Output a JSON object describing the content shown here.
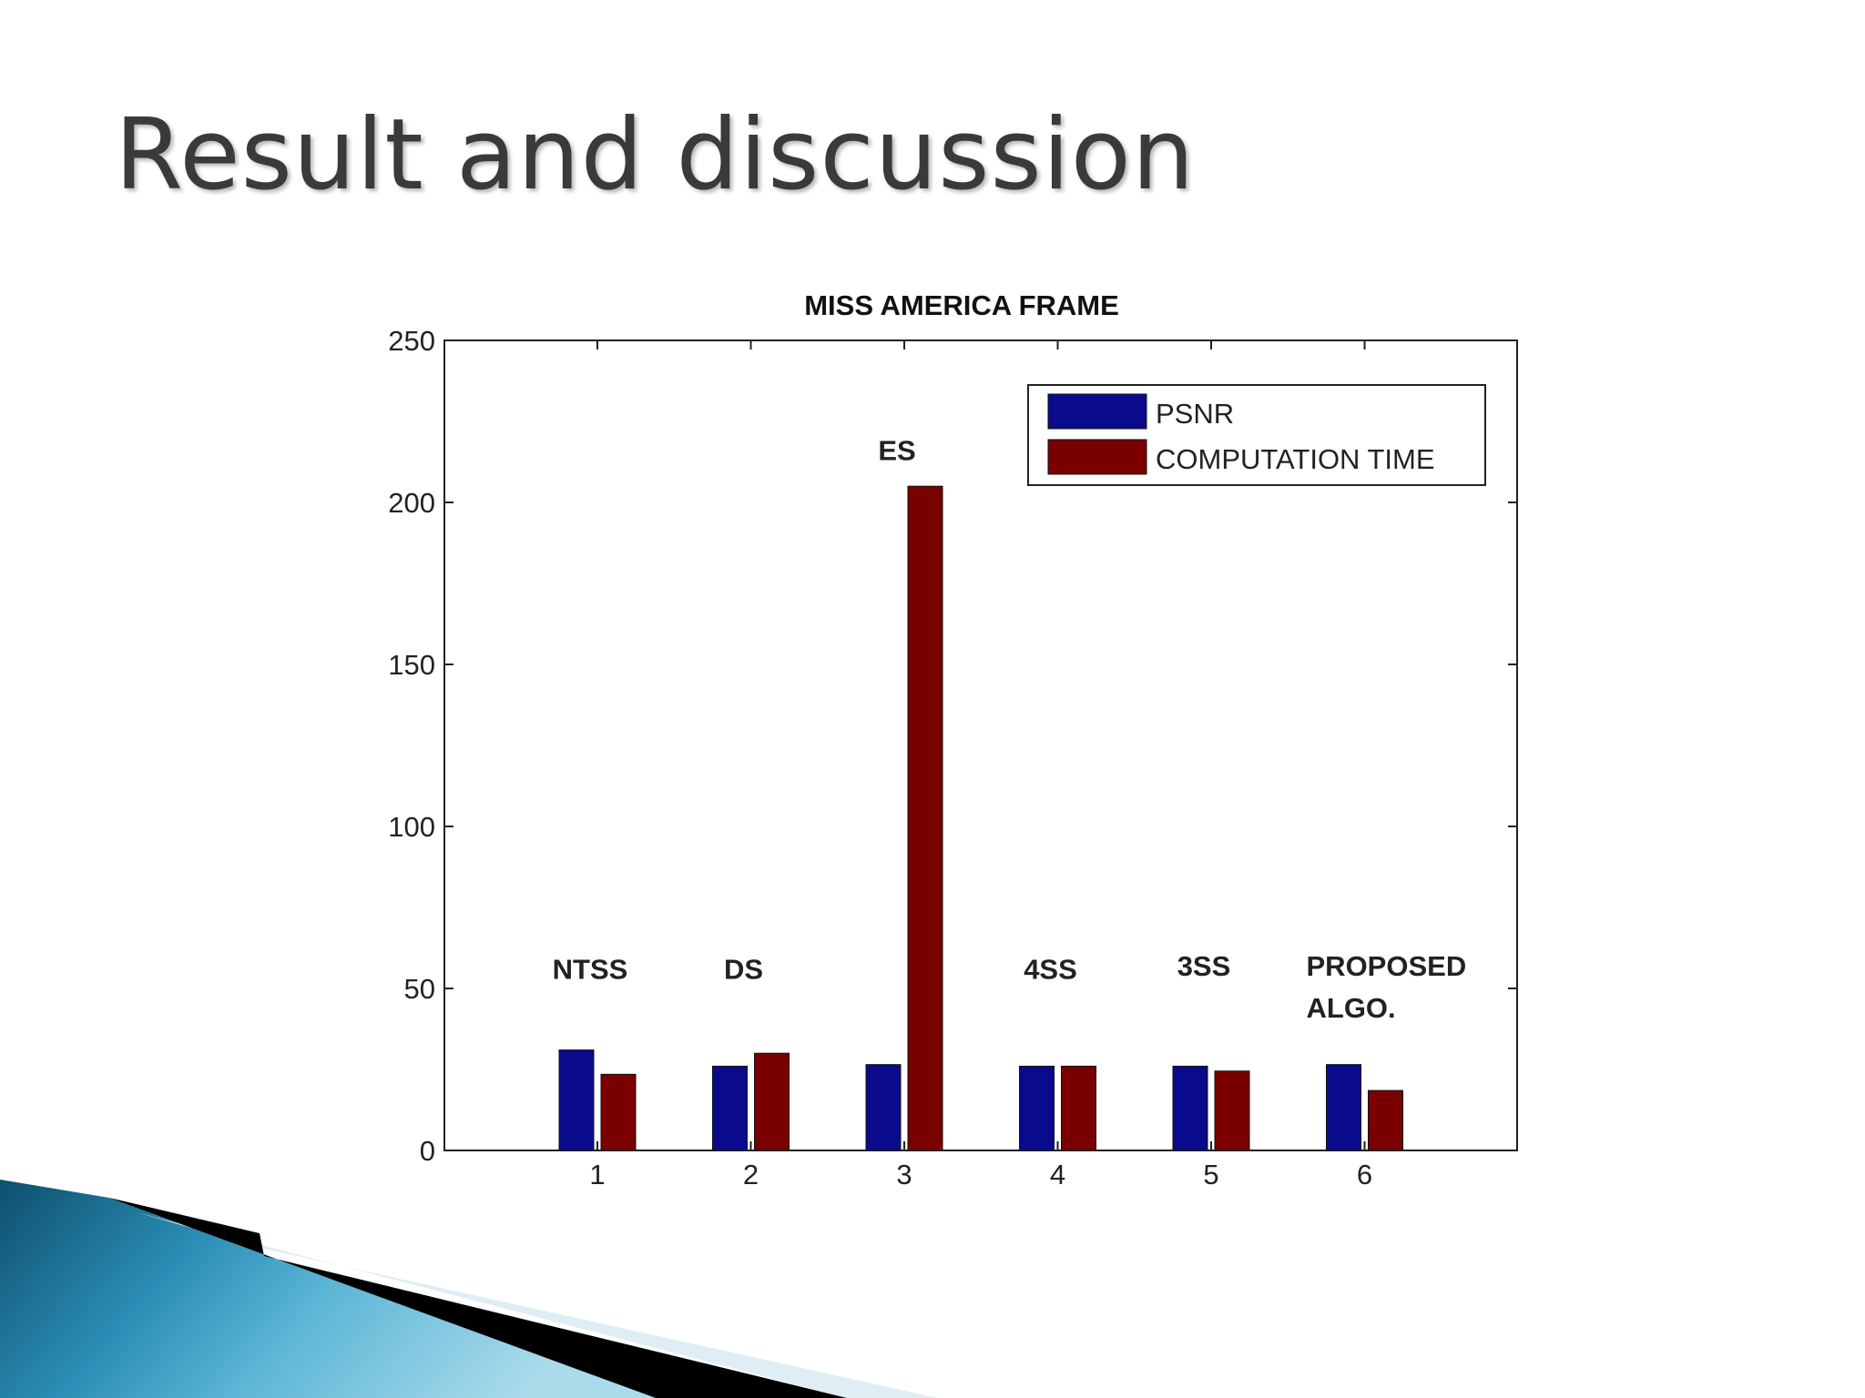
{
  "slide": {
    "title": "Result and discussion"
  },
  "colors": {
    "psnr": "#0a0a8c",
    "computation_time": "#7a0000",
    "title_text": "#3a3a3a",
    "accent": "#2f8fb8"
  },
  "chart_data": {
    "type": "bar",
    "title": "MISS AMERICA FRAME",
    "xlabel": "",
    "ylabel": "",
    "categories": [
      "1",
      "2",
      "3",
      "4",
      "5",
      "6"
    ],
    "ylim": [
      0,
      250
    ],
    "yticks": [
      0,
      50,
      100,
      150,
      200,
      250
    ],
    "grid": false,
    "legend": "top-right",
    "series": [
      {
        "name": "PSNR",
        "values": [
          31,
          26,
          26.5,
          26,
          26,
          26.5
        ]
      },
      {
        "name": "COMPUTATION TIME",
        "values": [
          23.5,
          30,
          205,
          26,
          24.5,
          18.5
        ]
      }
    ],
    "annotations": [
      {
        "category": "1",
        "lines": [
          "NTSS"
        ],
        "y": 53
      },
      {
        "category": "2",
        "lines": [
          "DS"
        ],
        "y": 53
      },
      {
        "category": "3",
        "lines": [
          "ES"
        ],
        "y": 213
      },
      {
        "category": "4",
        "lines": [
          "4SS"
        ],
        "y": 53
      },
      {
        "category": "5",
        "lines": [
          "3SS"
        ],
        "y": 54
      },
      {
        "category": "6",
        "lines": [
          "PROPOSED",
          "ALGO."
        ],
        "y": 54
      }
    ]
  }
}
